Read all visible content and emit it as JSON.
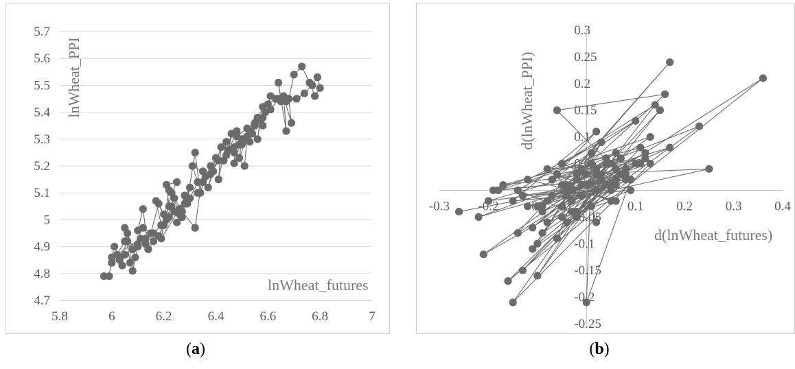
{
  "captions": {
    "a_open": "(",
    "a_letter": "a",
    "a_close": ")",
    "b_open": "(",
    "b_letter": "b",
    "b_close": ")"
  },
  "colors": {
    "marker": "#6d6a6b",
    "line": "#6d6a6b",
    "grid": "#d9d9d9",
    "axis": "#bfbfbf"
  },
  "chart_data": [
    {
      "type": "scatter",
      "connected": true,
      "title": "",
      "xlabel": "lnWheat_futures",
      "ylabel": "lnWheat_PPI",
      "xlim": [
        5.8,
        7
      ],
      "ylim": [
        4.7,
        5.7
      ],
      "xticks": [
        "5.8",
        "6",
        "6.2",
        "6.4",
        "6.6",
        "6.8",
        "7"
      ],
      "yticks": [
        "4.7",
        "4.8",
        "4.9",
        "5",
        "5.1",
        "5.2",
        "5.3",
        "5.4",
        "5.5",
        "5.6",
        "5.7"
      ],
      "grid": "horizontal",
      "series": [
        {
          "x": [
            5.97,
            5.99,
            6.0,
            6.01,
            6.04,
            6.03,
            6.06,
            6.05,
            6.07,
            6.09,
            6.06,
            6.08,
            6.1,
            6.05,
            6.02,
            6.11,
            6.13,
            6.1,
            6.12,
            6.14,
            6.16,
            6.12,
            6.15,
            6.18,
            6.2,
            6.17,
            6.19,
            6.22,
            6.21,
            6.25,
            6.23,
            6.2,
            6.24,
            6.27,
            6.22,
            6.19,
            6.26,
            6.28,
            6.3,
            6.25,
            6.29,
            6.33,
            6.31,
            6.35,
            6.32,
            6.27,
            6.24,
            6.21,
            6.18,
            6.23,
            6.26,
            6.29,
            6.32,
            6.34,
            6.36,
            6.38,
            6.4,
            6.37,
            6.39,
            6.42,
            6.41,
            6.44,
            6.43,
            6.46,
            6.45,
            6.48,
            6.47,
            6.5,
            6.49,
            6.52,
            6.51,
            6.47,
            6.49,
            6.53,
            6.55,
            6.54,
            6.57,
            6.56,
            6.58,
            6.55,
            6.53,
            6.5,
            6.48,
            6.52,
            6.56,
            6.59,
            6.58,
            6.61,
            6.6,
            6.63,
            6.65,
            6.64,
            6.67,
            6.66,
            6.69,
            6.68,
            6.7,
            6.73,
            6.76,
            6.78,
            6.8,
            6.79,
            6.77,
            6.74,
            6.71,
            6.67,
            6.64,
            6.61,
            6.58,
            6.55,
            6.51,
            6.47,
            6.44,
            6.41,
            6.38,
            6.35,
            6.33,
            6.3,
            6.28,
            6.25,
            6.22,
            6.19,
            6.16,
            6.13,
            6.1,
            6.08,
            6.05,
            6.03,
            6.0
          ],
          "y": [
            4.79,
            4.79,
            4.86,
            4.9,
            4.83,
            4.85,
            4.92,
            4.97,
            4.84,
            4.86,
            4.95,
            4.81,
            4.9,
            4.92,
            4.87,
            4.93,
            4.91,
            4.96,
            5.04,
            4.89,
            4.92,
            4.97,
            4.95,
            5.06,
            5.02,
            5.07,
            4.98,
            5.05,
            5.13,
            5.14,
            5.1,
            4.98,
            5.03,
            5.01,
            5.11,
            4.93,
            5.04,
            5.09,
            5.12,
            4.99,
            5.06,
            5.14,
            5.2,
            5.18,
            4.97,
            5.03,
            5.08,
            5.0,
            4.94,
            5.05,
            5.02,
            5.07,
            5.25,
            5.1,
            5.16,
            5.2,
            5.23,
            5.12,
            5.18,
            5.27,
            5.15,
            5.29,
            5.22,
            5.32,
            5.26,
            5.33,
            5.21,
            5.3,
            5.23,
            5.31,
            5.2,
            5.25,
            5.28,
            5.29,
            5.36,
            5.32,
            5.37,
            5.3,
            5.42,
            5.35,
            5.33,
            5.28,
            5.31,
            5.34,
            5.38,
            5.4,
            5.35,
            5.46,
            5.43,
            5.45,
            5.44,
            5.51,
            5.33,
            5.46,
            5.36,
            5.45,
            5.54,
            5.57,
            5.51,
            5.46,
            5.49,
            5.53,
            5.5,
            5.47,
            5.45,
            5.44,
            5.45,
            5.41,
            5.38,
            5.36,
            5.3,
            5.27,
            5.24,
            5.22,
            5.17,
            5.14,
            5.1,
            5.08,
            5.06,
            5.03,
            5.01,
            4.98,
            4.95,
            4.93,
            4.91,
            4.89,
            4.87,
            4.86,
            4.84
          ]
        }
      ]
    },
    {
      "type": "scatter",
      "connected": true,
      "title": "",
      "xlabel": "d(lnWheat_futures)",
      "ylabel": "d(lnWheat_PPI)",
      "xlim": [
        -0.3,
        0.4
      ],
      "ylim": [
        -0.25,
        0.3
      ],
      "xticks": [
        "-0.3",
        "-0.2",
        "-0.1",
        "0",
        "0.1",
        "0.2",
        "0.3",
        "0.4"
      ],
      "yticks": [
        "-0.25",
        "-0.2",
        "-0.15",
        "-0.1",
        "-0.05",
        "0",
        "0.05",
        "0.1",
        "0.15",
        "0.2",
        "0.25",
        "0.3"
      ],
      "grid": "none",
      "series": [
        {
          "x": [
            -0.26,
            -0.03,
            -0.22,
            0.02,
            -0.21,
            0.04,
            -0.16,
            0.36,
            -0.14,
            0.17,
            -0.05,
            0.06,
            -0.12,
            0.03,
            -0.1,
            0.1,
            -0.08,
            0.01,
            -0.04,
            0.23,
            -0.02,
            0.25,
            0.05,
            -0.13,
            0.08,
            -0.06,
            0.16,
            -0.09,
            0.12,
            -0.01,
            -0.11,
            0.07,
            -0.07,
            0.02,
            -0.15,
            0.09,
            -0.03,
            0.14,
            -0.05,
            0.0,
            -0.17,
            0.11,
            -0.02,
            0.04,
            -0.08,
            0.06,
            -0.1,
            0.03,
            -0.19,
            0.13,
            -0.04,
            0.01,
            -0.06,
            0.08,
            -0.12,
            0.05,
            -0.01,
            0.02,
            -0.14,
            0.1,
            -0.07,
            0.04,
            -0.03,
            0.06,
            -0.09,
            0.15,
            -0.02,
            0.07,
            -0.05,
            0.03,
            -0.11,
            0.09,
            0.0,
            0.01,
            -0.04,
            0.05,
            -0.08,
            0.12,
            -0.06,
            0.02,
            -0.13,
            0.08,
            -0.01,
            0.03,
            -0.18,
            0.06,
            -0.02,
            0.11,
            -0.05,
            0.04,
            -0.2,
            0.17,
            -0.03,
            0.07,
            -0.07,
            0.02,
            -0.1,
            0.09,
            -0.01,
            0.05,
            -0.15,
            0.13,
            -0.04,
            0.03,
            -0.09,
            0.06,
            0.0,
            0.08
          ],
          "y": [
            -0.04,
            0.0,
            -0.05,
            0.03,
            -0.12,
            0.01,
            -0.17,
            0.21,
            -0.08,
            0.24,
            0.01,
            -0.02,
            0.02,
            0.09,
            -0.1,
            0.05,
            0.04,
            -0.03,
            -0.06,
            0.12,
            0.03,
            0.04,
            0.0,
            -0.01,
            0.02,
            0.15,
            0.18,
            -0.03,
            0.07,
            0.01,
            -0.07,
            0.06,
            0.02,
            0.11,
            -0.02,
            0.0,
            -0.04,
            0.16,
            0.05,
            0.03,
            0.01,
            0.08,
            -0.05,
            0.05,
            -0.02,
            0.04,
            -0.16,
            0.02,
            0.0,
            0.1,
            -0.01,
            0.07,
            -0.09,
            0.03,
            -0.03,
            0.01,
            0.04,
            -0.06,
            0.0,
            0.13,
            0.02,
            0.06,
            -0.02,
            0.01,
            -0.08,
            0.15,
            -0.04,
            0.03,
            -0.05,
            0.09,
            -0.11,
            0.02,
            -0.21,
            0.05,
            0.01,
            -0.02,
            -0.06,
            0.06,
            0.03,
            0.0,
            -0.15,
            0.04,
            -0.01,
            0.02,
            0.0,
            0.07,
            0.02,
            0.05,
            -0.03,
            0.01,
            -0.02,
            0.08,
            0.0,
            0.03,
            -0.01,
            0.04,
            -0.03,
            0.02,
            0.01,
            0.05,
            -0.21,
            0.05,
            0.0,
            0.03,
            -0.04,
            0.02,
            0.01,
            0.04
          ]
        }
      ]
    }
  ]
}
